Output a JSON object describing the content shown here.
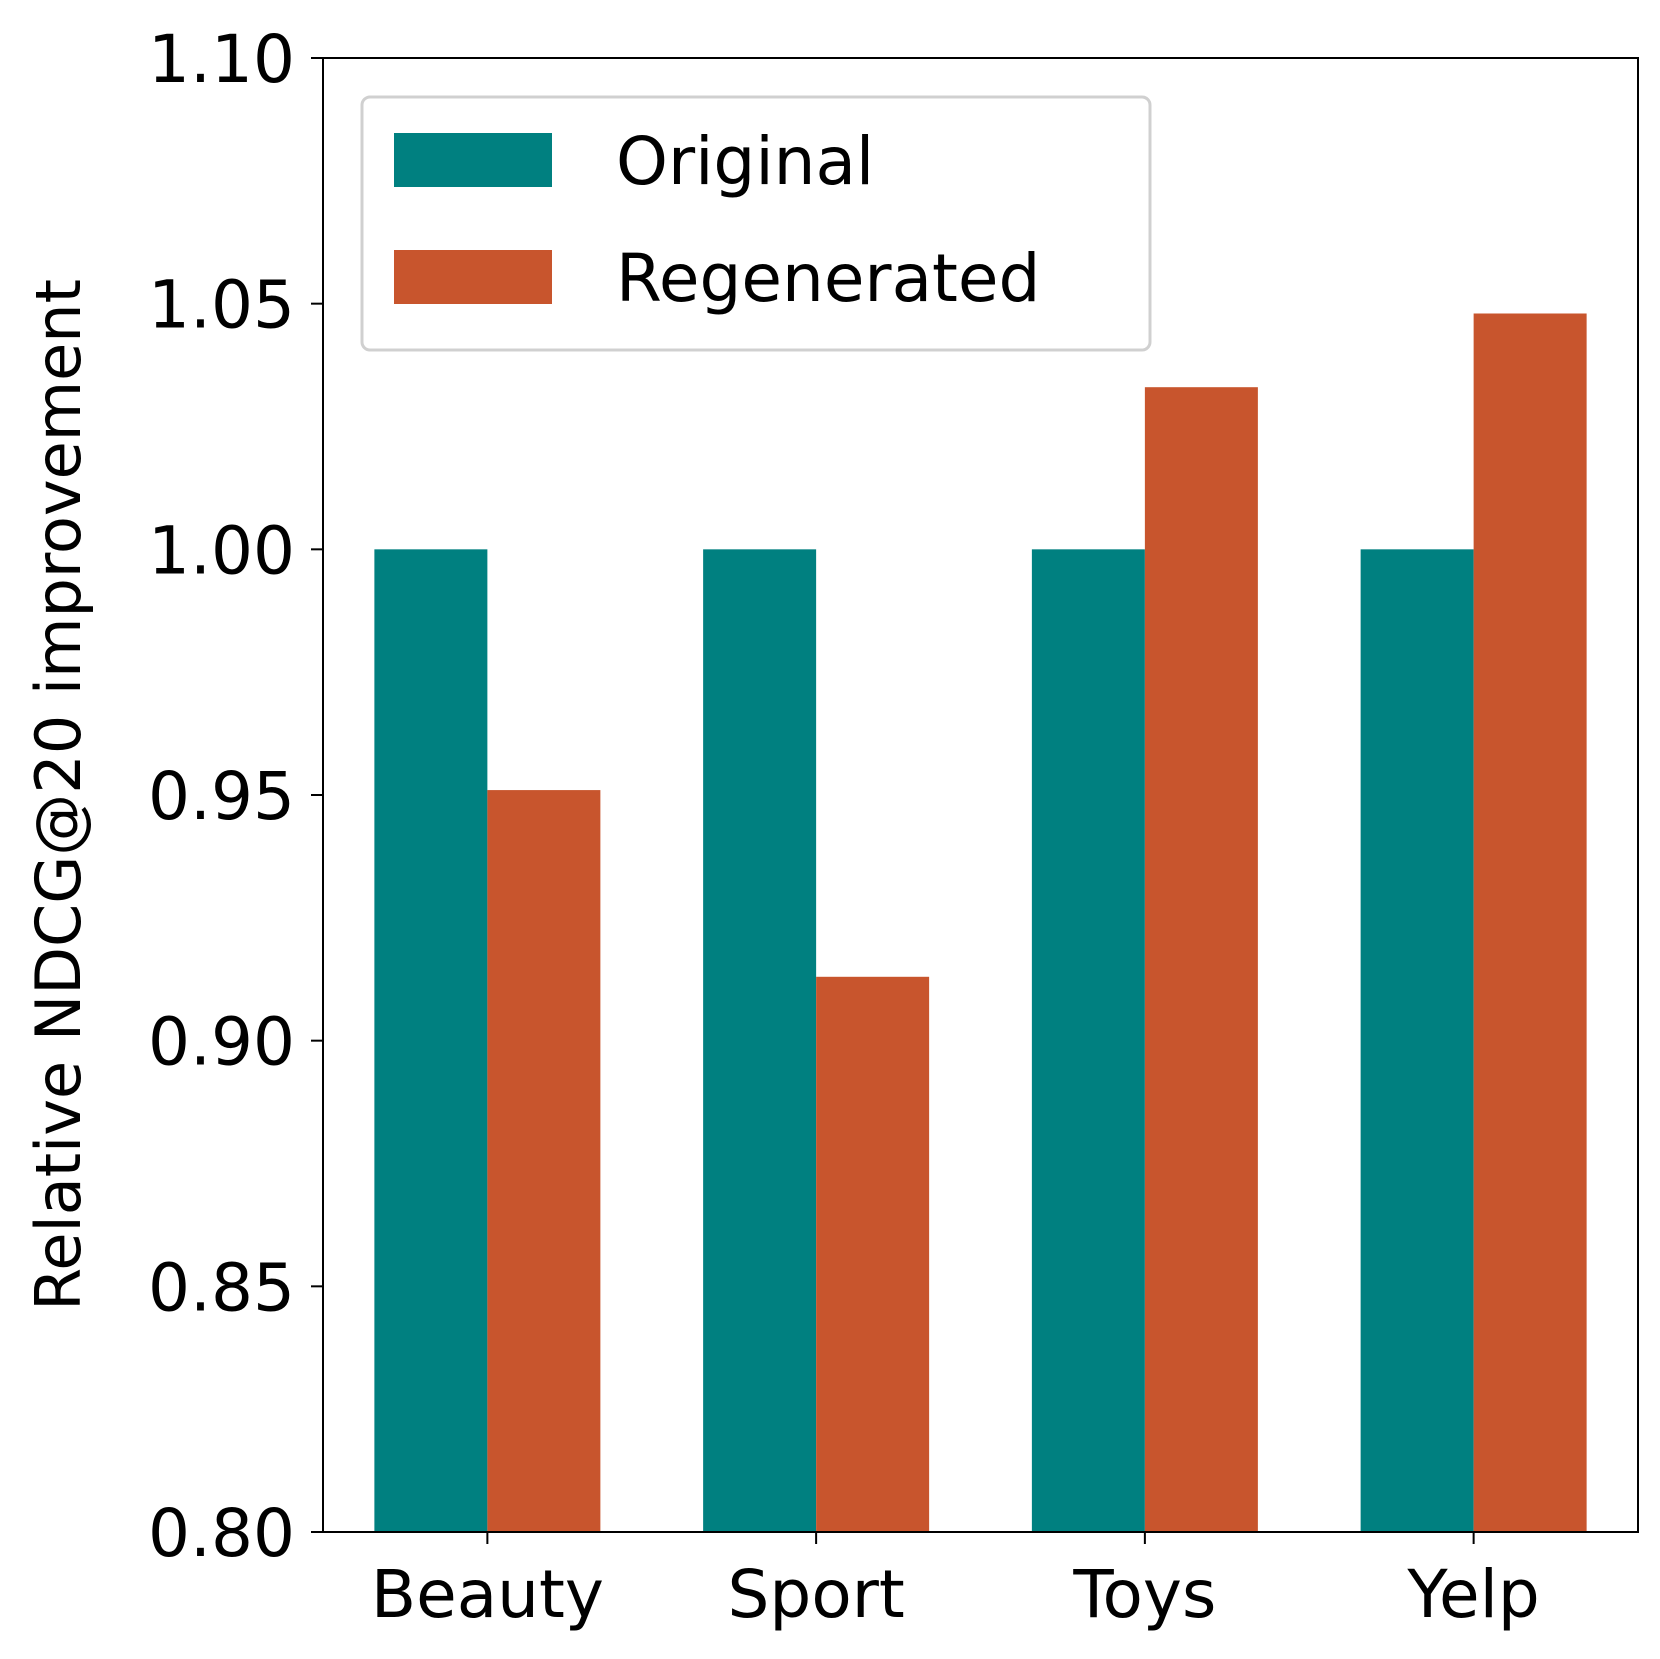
{
  "chart_data": {
    "type": "bar",
    "categories": [
      "Beauty",
      "Sport",
      "Toys",
      "Yelp"
    ],
    "series": [
      {
        "name": "Original",
        "color": "#008080",
        "values": [
          1.0,
          1.0,
          1.0,
          1.0
        ]
      },
      {
        "name": "Regenerated",
        "color": "#c8552d",
        "values": [
          0.951,
          0.913,
          1.033,
          1.048
        ]
      }
    ],
    "title": "",
    "xlabel": "",
    "ylabel": "Relative NDCG@20 improvement",
    "ylim": [
      0.8,
      1.1
    ],
    "yticks": [
      "0.80",
      "0.85",
      "0.90",
      "0.95",
      "1.00",
      "1.05",
      "1.10"
    ],
    "grid": false,
    "legend_position": "top-left"
  }
}
